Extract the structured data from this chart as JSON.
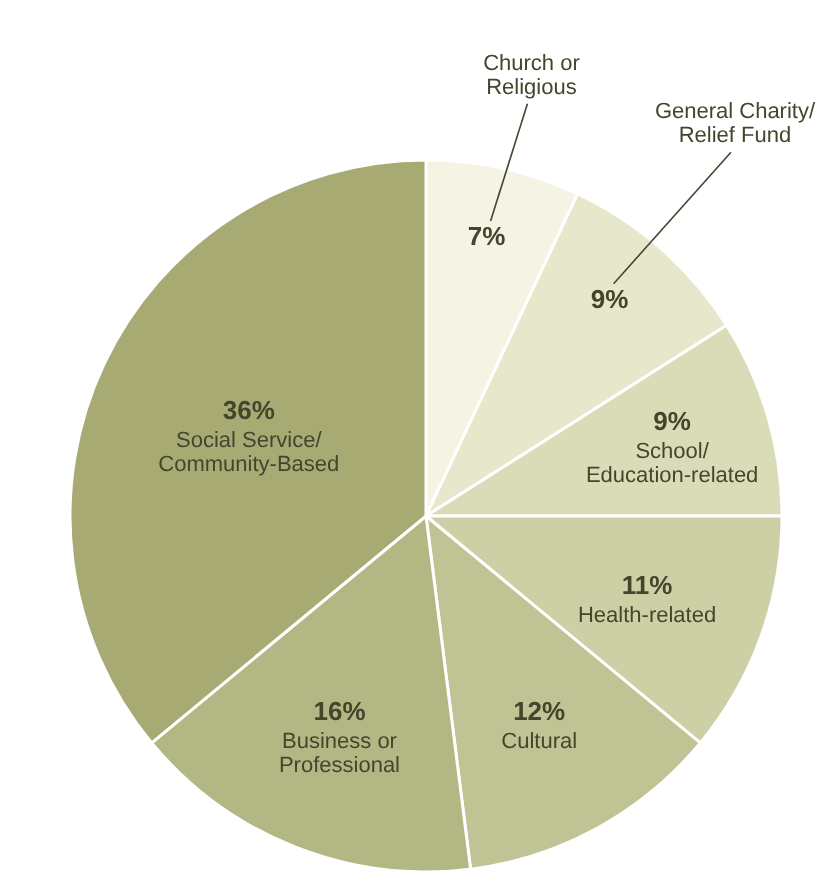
{
  "chart_data": {
    "type": "pie",
    "categories": [
      "Church or Religious",
      "General Charity/Relief Fund",
      "School/Education-related",
      "Health-related",
      "Cultural",
      "Business or Professional",
      "Social Service/Community-Based"
    ],
    "values": [
      7,
      9,
      9,
      11,
      12,
      16,
      36
    ],
    "value_labels": [
      "7%",
      "9%",
      "9%",
      "11%",
      "12%",
      "16%",
      "36%"
    ],
    "colors": [
      "#f4f3e4",
      "#e7e8cb",
      "#dadcb8",
      "#cdd0a5",
      "#c0c494",
      "#b3b783",
      "#a7ab73"
    ]
  }
}
